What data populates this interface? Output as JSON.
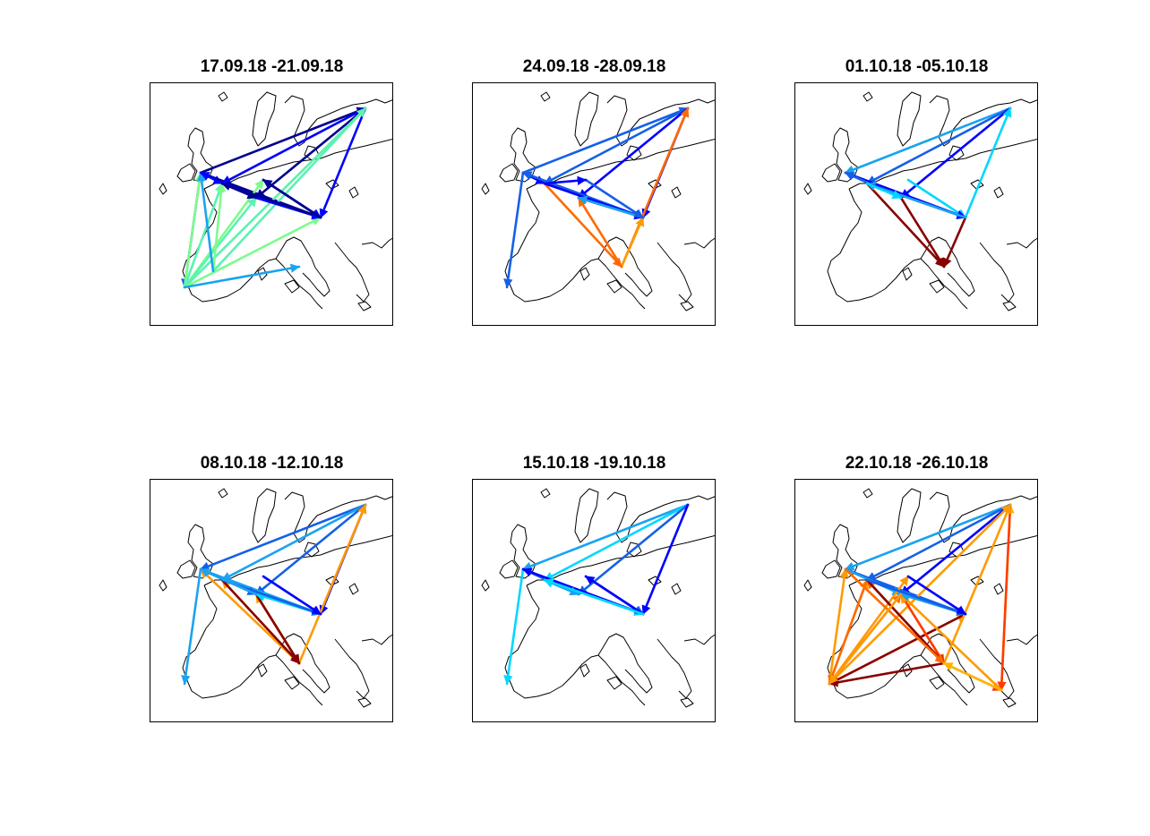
{
  "panels": [
    {
      "title": "17.09.18 -21.09.18"
    },
    {
      "title": "24.09.18 -28.09.18"
    },
    {
      "title": "01.10.18 -05.10.18"
    },
    {
      "title": "08.10.18 -12.10.18"
    },
    {
      "title": "15.10.18 -19.10.18"
    },
    {
      "title": "22.10.18 -26.10.18"
    }
  ],
  "colors": {
    "dark_blue": "#00008f",
    "blue": "#0000ff",
    "mid_blue": "#1560e8",
    "light_blue": "#1aa3f0",
    "cyan": "#00d7ff",
    "aqua_green": "#5cf2b0",
    "light_green": "#7dfc8c",
    "orange": "#ff9a00",
    "dark_orange": "#ff6a00",
    "yellow_orange": "#ffb400",
    "red": "#ff3c00",
    "dark_red": "#880000"
  },
  "flows": [
    [
      [
        "ireland",
        "finland",
        "dark_blue"
      ],
      [
        "ireland",
        "belgium",
        "blue"
      ],
      [
        "ireland",
        "germany_s",
        "mid_blue"
      ],
      [
        "ireland",
        "austria",
        "dark_blue"
      ],
      [
        "ireland",
        "north_spain",
        "mid_blue"
      ],
      [
        "finland",
        "belgium",
        "blue"
      ],
      [
        "finland",
        "germany_s",
        "dark_blue"
      ],
      [
        "finland",
        "austria",
        "blue"
      ],
      [
        "finland",
        "north_spain",
        "aqua_green"
      ],
      [
        "north_spain",
        "ireland",
        "light_green"
      ],
      [
        "north_spain",
        "belgium",
        "aqua_green"
      ],
      [
        "north_spain",
        "germany_n",
        "light_green"
      ],
      [
        "north_spain",
        "germany_s",
        "aqua_green"
      ],
      [
        "north_spain",
        "austria",
        "light_green"
      ],
      [
        "north_spain",
        "italy_n",
        "light_blue"
      ],
      [
        "france_s",
        "finland",
        "aqua_green"
      ],
      [
        "france_s",
        "belgium",
        "light_green"
      ],
      [
        "france_s",
        "ireland",
        "light_blue"
      ],
      [
        "germany_s",
        "austria",
        "blue"
      ],
      [
        "belgium",
        "austria",
        "blue"
      ],
      [
        "austria",
        "belgium",
        "dark_blue"
      ],
      [
        "germany_n",
        "austria",
        "blue"
      ],
      [
        "austria",
        "germany_n",
        "dark_blue"
      ],
      [
        "germany_s",
        "ireland",
        "blue"
      ],
      [
        "belgium",
        "germany_s",
        "dark_blue"
      ]
    ],
    [
      [
        "ireland",
        "finland",
        "mid_blue"
      ],
      [
        "ireland",
        "north_spain",
        "mid_blue"
      ],
      [
        "ireland",
        "belgium",
        "blue"
      ],
      [
        "ireland",
        "austria",
        "blue"
      ],
      [
        "finland",
        "belgium",
        "mid_blue"
      ],
      [
        "finland",
        "germany_s",
        "blue"
      ],
      [
        "finland",
        "austria",
        "blue"
      ],
      [
        "italy",
        "finland",
        "dark_orange"
      ],
      [
        "italy",
        "germany_s",
        "dark_orange"
      ],
      [
        "italy",
        "austria",
        "orange"
      ],
      [
        "belgium",
        "italy",
        "dark_orange"
      ],
      [
        "austria",
        "ireland",
        "mid_blue"
      ],
      [
        "germany_s",
        "austria",
        "blue"
      ],
      [
        "belgium",
        "austria",
        "blue"
      ],
      [
        "austria",
        "germany_s",
        "light_blue"
      ],
      [
        "germany_n",
        "austria",
        "mid_blue"
      ],
      [
        "belgium",
        "germany_n",
        "blue"
      ]
    ],
    [
      [
        "finland",
        "ireland",
        "light_blue"
      ],
      [
        "finland",
        "belgium",
        "mid_blue"
      ],
      [
        "finland",
        "germany_s",
        "blue"
      ],
      [
        "austria",
        "finland",
        "cyan"
      ],
      [
        "ireland",
        "austria",
        "blue"
      ],
      [
        "ireland",
        "germany_s",
        "light_blue"
      ],
      [
        "belgium",
        "italy",
        "dark_red"
      ],
      [
        "germany_s",
        "italy",
        "dark_red"
      ],
      [
        "austria",
        "italy",
        "dark_red"
      ],
      [
        "germany_n",
        "austria",
        "cyan"
      ],
      [
        "belgium",
        "austria",
        "blue"
      ],
      [
        "austria",
        "belgium",
        "light_blue"
      ],
      [
        "germany_s",
        "ireland",
        "mid_blue"
      ],
      [
        "belgium",
        "germany_s",
        "cyan"
      ]
    ],
    [
      [
        "finland",
        "ireland",
        "mid_blue"
      ],
      [
        "finland",
        "belgium",
        "light_blue"
      ],
      [
        "finland",
        "germany_s",
        "mid_blue"
      ],
      [
        "finland",
        "austria",
        "blue"
      ],
      [
        "ireland",
        "austria",
        "light_blue"
      ],
      [
        "ireland",
        "north_spain",
        "light_blue"
      ],
      [
        "ireland",
        "germany_s",
        "mid_blue"
      ],
      [
        "italy",
        "finland",
        "orange"
      ],
      [
        "italy",
        "germany_s",
        "orange"
      ],
      [
        "italy",
        "belgium",
        "orange"
      ],
      [
        "italy",
        "ireland",
        "orange"
      ],
      [
        "belgium",
        "italy",
        "dark_red"
      ],
      [
        "germany_s",
        "italy",
        "dark_red"
      ],
      [
        "austria",
        "germany_s",
        "cyan"
      ],
      [
        "belgium",
        "austria",
        "mid_blue"
      ],
      [
        "germany_n",
        "austria",
        "blue"
      ],
      [
        "germany_s",
        "ireland",
        "light_blue"
      ]
    ],
    [
      [
        "finland",
        "ireland",
        "light_blue"
      ],
      [
        "finland",
        "belgium",
        "cyan"
      ],
      [
        "finland",
        "germany_s",
        "mid_blue"
      ],
      [
        "finland",
        "austria",
        "blue"
      ],
      [
        "ireland",
        "austria",
        "blue"
      ],
      [
        "ireland",
        "north_spain",
        "cyan"
      ],
      [
        "ireland",
        "germany_s",
        "mid_blue"
      ],
      [
        "austria",
        "ireland",
        "blue"
      ],
      [
        "belgium",
        "austria",
        "cyan"
      ],
      [
        "germany_n",
        "austria",
        "mid_blue"
      ],
      [
        "austria",
        "germany_n",
        "blue"
      ],
      [
        "germany_s",
        "belgium",
        "cyan"
      ],
      [
        "belgium",
        "germany_s",
        "light_blue"
      ],
      [
        "austria",
        "belgium",
        "cyan"
      ]
    ],
    [
      [
        "finland",
        "ireland",
        "light_blue"
      ],
      [
        "finland",
        "belgium",
        "mid_blue"
      ],
      [
        "finland",
        "germany_s",
        "blue"
      ],
      [
        "ireland",
        "austria",
        "mid_blue"
      ],
      [
        "ireland",
        "germany_s",
        "light_blue"
      ],
      [
        "north_spain",
        "ireland",
        "orange"
      ],
      [
        "north_spain",
        "finland",
        "orange"
      ],
      [
        "north_spain",
        "belgium",
        "orange"
      ],
      [
        "north_spain",
        "germany_n",
        "orange"
      ],
      [
        "north_spain",
        "germany_s",
        "dark_orange"
      ],
      [
        "north_spain",
        "austria",
        "orange"
      ],
      [
        "italy",
        "north_spain",
        "dark_red"
      ],
      [
        "austria",
        "north_spain",
        "dark_red"
      ],
      [
        "belgium",
        "north_spain",
        "dark_orange"
      ],
      [
        "greece",
        "finland",
        "yellow_orange"
      ],
      [
        "finland",
        "greece",
        "red"
      ],
      [
        "italy",
        "greece",
        "red"
      ],
      [
        "italy",
        "finland",
        "orange"
      ],
      [
        "italy",
        "germany_s",
        "orange"
      ],
      [
        "italy",
        "belgium",
        "dark_orange"
      ],
      [
        "germany_s",
        "italy",
        "red"
      ],
      [
        "belgium",
        "italy",
        "dark_red"
      ],
      [
        "greece",
        "germany_s",
        "orange"
      ],
      [
        "ireland",
        "italy",
        "dark_orange"
      ],
      [
        "austria",
        "germany_s",
        "light_blue"
      ],
      [
        "belgium",
        "austria",
        "mid_blue"
      ],
      [
        "germany_n",
        "austria",
        "blue"
      ],
      [
        "germany_s",
        "north_spain",
        "orange"
      ],
      [
        "greece",
        "italy",
        "yellow_orange"
      ]
    ]
  ]
}
